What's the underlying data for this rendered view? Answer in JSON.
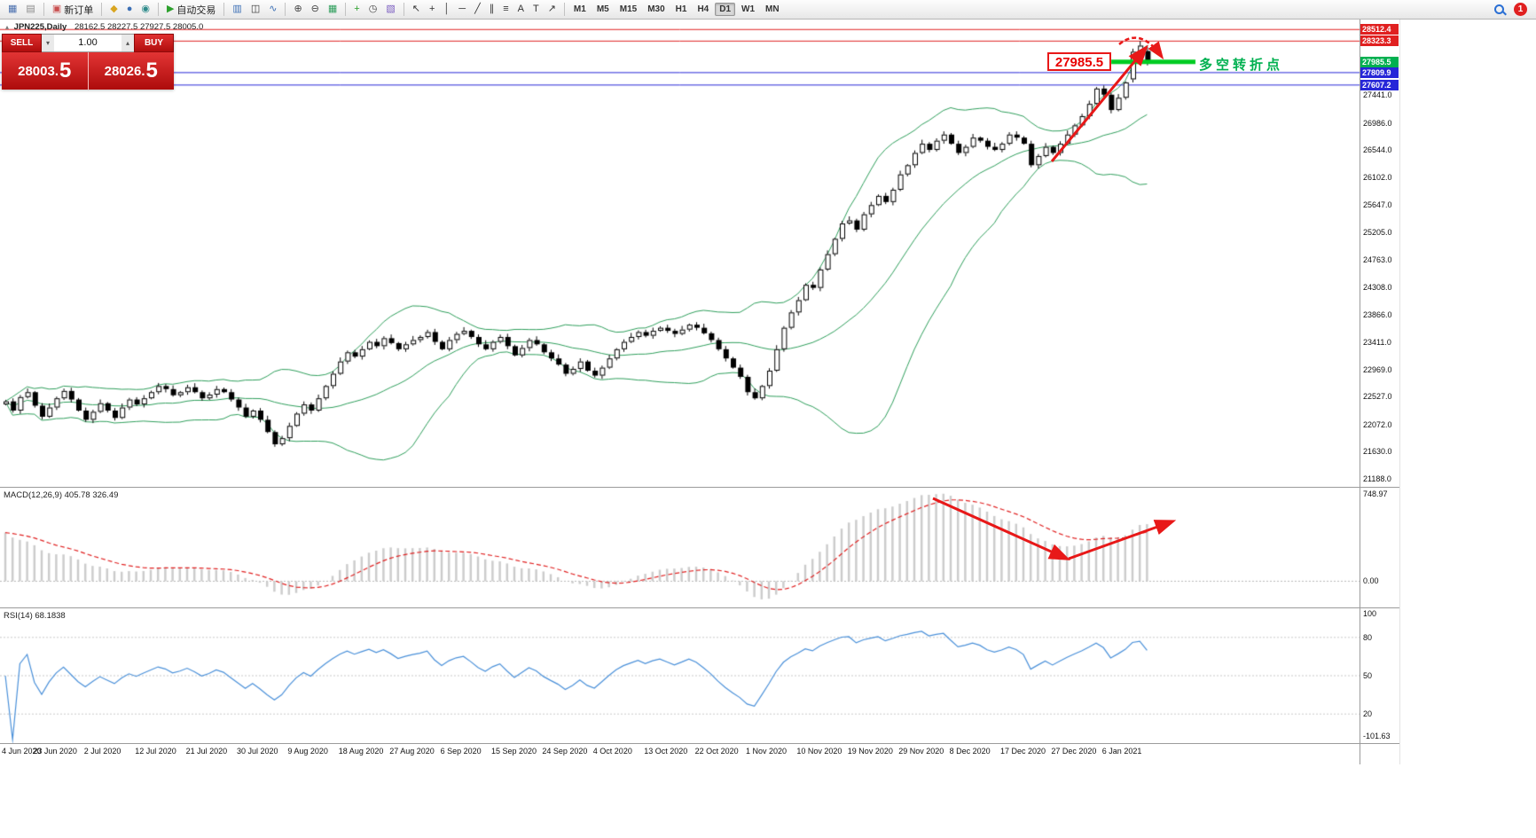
{
  "toolbar": {
    "groups": [
      [
        {
          "name": "new-chart-icon",
          "glyph": "▦",
          "color": "#4a6fae"
        },
        {
          "name": "profiles-icon",
          "glyph": "▤",
          "color": "#8a8a8a"
        }
      ],
      [
        {
          "name": "new-order-button",
          "glyph": "▣",
          "color": "#c94f4f",
          "label": "新订单"
        }
      ],
      [
        {
          "name": "metaeditor-icon",
          "glyph": "◆",
          "color": "#d9a520"
        },
        {
          "name": "options-icon",
          "glyph": "●",
          "color": "#3b6fb5"
        },
        {
          "name": "community-icon",
          "glyph": "◉",
          "color": "#2e8b8b"
        }
      ],
      [
        {
          "name": "auto-trading-button",
          "glyph": "▶",
          "color": "#2ca02c",
          "label": "自动交易"
        }
      ],
      [
        {
          "name": "bar-chart-icon",
          "glyph": "▥",
          "color": "#3b6fb5"
        },
        {
          "name": "candlestick-icon",
          "glyph": "◫",
          "color": "#333333"
        },
        {
          "name": "line-chart-icon",
          "glyph": "∿",
          "color": "#3b6fb5"
        }
      ],
      [
        {
          "name": "zoom-in-icon",
          "glyph": "⊕",
          "color": "#444444"
        },
        {
          "name": "zoom-out-icon",
          "glyph": "⊖",
          "color": "#444444"
        },
        {
          "name": "tile-windows-icon",
          "glyph": "▦",
          "color": "#2e9e5b"
        }
      ],
      [
        {
          "name": "indicators-icon",
          "glyph": "+",
          "color": "#2ca02c"
        },
        {
          "name": "periods-icon",
          "glyph": "◷",
          "color": "#444444"
        },
        {
          "name": "templates-icon",
          "glyph": "▧",
          "color": "#7a5cc0"
        }
      ],
      [
        {
          "name": "cursor-icon",
          "glyph": "↖",
          "color": "#333333"
        },
        {
          "name": "crosshair-icon",
          "glyph": "+",
          "color": "#333333"
        },
        {
          "name": "vertical-line-icon",
          "glyph": "│",
          "color": "#333333"
        },
        {
          "name": "horizontal-line-icon",
          "glyph": "─",
          "color": "#333333"
        },
        {
          "name": "trendline-icon",
          "glyph": "╱",
          "color": "#333333"
        },
        {
          "name": "channel-icon",
          "glyph": "∥",
          "color": "#333333"
        },
        {
          "name": "fibonacci-icon",
          "glyph": "≡",
          "color": "#333333"
        },
        {
          "name": "text-icon",
          "glyph": "A",
          "color": "#333333"
        },
        {
          "name": "label-icon",
          "glyph": "T",
          "color": "#333333"
        },
        {
          "name": "arrows-icon",
          "glyph": "↗",
          "color": "#333333"
        }
      ]
    ],
    "timeframes": [
      "M1",
      "M5",
      "M15",
      "M30",
      "H1",
      "H4",
      "D1",
      "W1",
      "MN"
    ],
    "active_timeframe": "D1",
    "notification_count": "1"
  },
  "chart": {
    "title": "JPN225,Daily",
    "ohlc": "28162.5 28227.5 27927.5 28005.0",
    "trade_panel": {
      "sell_label": "SELL",
      "buy_label": "BUY",
      "volume": "1.00",
      "sell_price_main": "28003.",
      "sell_price_big": "5",
      "buy_price_main": "28026.",
      "buy_price_big": "5"
    },
    "annotations": {
      "price_flag": "27985.5",
      "turning_point": "多空转折点",
      "red_levels": [
        28512.4,
        28323.3
      ],
      "blue_levels": [
        27809.9,
        27607.2
      ],
      "green_level": 27985.5,
      "colors": {
        "red": "#e02020",
        "blue": "#2727d8",
        "green": "#00cc22",
        "flag": "#e80000",
        "note": "#00b050"
      }
    },
    "price_axis": {
      "plain": [
        27441.0,
        26986.0,
        26544.0,
        26102.0,
        25647.0,
        25205.0,
        24763.0,
        24308.0,
        23866.0,
        23411.0,
        22969.0,
        22527.0,
        22072.0,
        21630.0,
        21188.0
      ],
      "highlight": [
        {
          "value": 28512.4,
          "color": "#e02020"
        },
        {
          "value": 28323.3,
          "color": "#e02020"
        },
        {
          "value": 27985.5,
          "color": "#00b050"
        },
        {
          "value": 27809.9,
          "color": "#2727d8"
        },
        {
          "value": 27607.2,
          "color": "#2727d8"
        }
      ]
    },
    "time_labels": [
      "4 Jun 2020",
      "23 Jun 2020",
      "2 Jul 2020",
      "12 Jul 2020",
      "21 Jul 2020",
      "30 Jul 2020",
      "9 Aug 2020",
      "18 Aug 2020",
      "27 Aug 2020",
      "6 Sep 2020",
      "15 Sep 2020",
      "24 Sep 2020",
      "4 Oct 2020",
      "13 Oct 2020",
      "22 Oct 2020",
      "1 Nov 2020",
      "10 Nov 2020",
      "19 Nov 2020",
      "29 Nov 2020",
      "8 Dec 2020",
      "17 Dec 2020",
      "27 Dec 2020",
      "6 Jan 2021"
    ]
  },
  "indicators": {
    "macd": {
      "label": "MACD(12,26,9) 405.78 326.49",
      "fast": 12,
      "slow": 26,
      "signal": 9,
      "axis_top": "748.97",
      "axis_zero": "0.00",
      "axis_bottom": "-101.63",
      "seed_offset": 420,
      "histogram_color": "#cccccc",
      "signal_color": "#e02020"
    },
    "rsi": {
      "label": "RSI(14) 68.1838",
      "period": 14,
      "line_color": "#4a90d9",
      "axis": [
        "100",
        "80",
        "50",
        "20"
      ],
      "levels": [
        80,
        50,
        20
      ]
    }
  },
  "chart_data": {
    "type": "candlestick",
    "symbol": "JPN225",
    "timeframe": "Daily",
    "ylim": [
      21100,
      28560
    ],
    "first_open": 22400,
    "closes": [
      22450,
      22300,
      22520,
      22600,
      22380,
      22200,
      22350,
      22500,
      22620,
      22480,
      22300,
      22150,
      22280,
      22420,
      22300,
      22180,
      22350,
      22480,
      22400,
      22500,
      22600,
      22700,
      22650,
      22550,
      22600,
      22680,
      22600,
      22500,
      22560,
      22650,
      22600,
      22480,
      22350,
      22200,
      22300,
      22150,
      21950,
      21750,
      21850,
      22050,
      22250,
      22400,
      22300,
      22500,
      22700,
      22900,
      23100,
      23250,
      23180,
      23300,
      23420,
      23350,
      23480,
      23400,
      23300,
      23380,
      23450,
      23500,
      23580,
      23420,
      23300,
      23450,
      23550,
      23600,
      23500,
      23380,
      23300,
      23420,
      23500,
      23350,
      23200,
      23320,
      23450,
      23380,
      23250,
      23150,
      23050,
      22900,
      22980,
      23100,
      22950,
      22870,
      23000,
      23150,
      23300,
      23420,
      23500,
      23580,
      23520,
      23600,
      23650,
      23600,
      23550,
      23620,
      23700,
      23650,
      23560,
      23450,
      23300,
      23150,
      23000,
      22850,
      22600,
      22500,
      22700,
      22950,
      23300,
      23650,
      23900,
      24100,
      24350,
      24300,
      24600,
      24850,
      25100,
      25350,
      25400,
      25250,
      25500,
      25650,
      25800,
      25700,
      25900,
      26150,
      26300,
      26500,
      26650,
      26550,
      26700,
      26800,
      26650,
      26500,
      26600,
      26750,
      26700,
      26600,
      26550,
      26650,
      26800,
      26750,
      26650,
      26300,
      26450,
      26600,
      26500,
      26650,
      26800,
      26950,
      27100,
      27300,
      27550,
      27450,
      27200,
      27400,
      27650,
      28150,
      28250,
      28005
    ],
    "wick_pattern": [
      45,
      90,
      60,
      110,
      35,
      75,
      120,
      50,
      70,
      95
    ],
    "overrides": {
      "155": [
        27700,
        28200,
        27650,
        28150
      ],
      "156": [
        28150,
        28323.3,
        28080,
        28250
      ],
      "157": [
        28162.5,
        28227.5,
        27927.5,
        28005.0
      ]
    },
    "bollinger": {
      "period": 20,
      "deviation": 2,
      "color": "#2e9e5b"
    }
  }
}
